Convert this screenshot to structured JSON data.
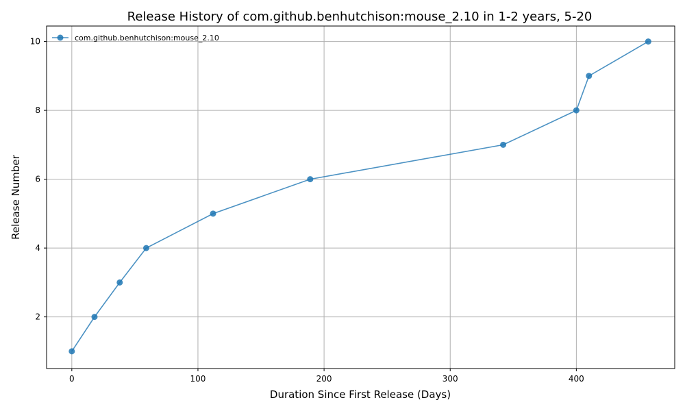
{
  "chart_data": {
    "type": "line",
    "title": "Release History of com.github.benhutchison:mouse_2.10 in 1-2 years, 5-20",
    "xlabel": "Duration Since First Release (Days)",
    "ylabel": "Release Number",
    "xlim": [
      -20,
      478
    ],
    "ylim": [
      0.5,
      10.45
    ],
    "xticks": [
      0,
      100,
      200,
      300,
      400
    ],
    "yticks": [
      2,
      4,
      6,
      8,
      10
    ],
    "grid": true,
    "legend_position": "top-left",
    "colors": {
      "series": "#1f77b4"
    },
    "series": [
      {
        "name": "com.github.benhutchison:mouse_2.10",
        "x": [
          0,
          18,
          38,
          59,
          112,
          189,
          342,
          400,
          410,
          457
        ],
        "y": [
          1,
          2,
          3,
          4,
          5,
          6,
          7,
          8,
          9,
          10
        ]
      }
    ]
  }
}
